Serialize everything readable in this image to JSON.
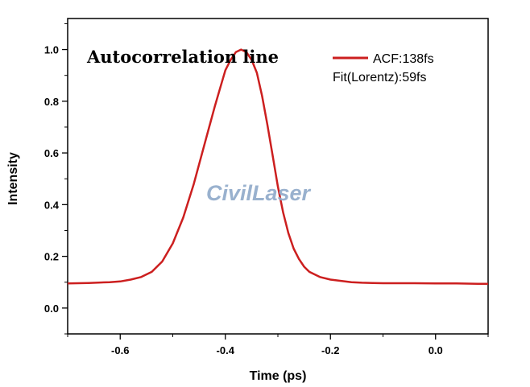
{
  "chart_data": {
    "type": "line",
    "title": "Autocorrelation line",
    "xlabel": "Time (ps)",
    "ylabel": "Intensity",
    "xlim": [
      -0.7,
      0.1
    ],
    "ylim": [
      -0.1,
      1.12
    ],
    "x_ticks": [
      -0.6,
      -0.4,
      -0.2,
      0.0
    ],
    "x_tick_labels": [
      "-0.6",
      "-0.4",
      "-0.2",
      "0.0"
    ],
    "y_ticks": [
      0.0,
      0.2,
      0.4,
      0.6,
      0.8,
      1.0
    ],
    "y_tick_labels": [
      "0.0",
      "0.2",
      "0.4",
      "0.6",
      "0.8",
      "1.0"
    ],
    "grid": false,
    "legend_position": "top-right",
    "legend_lines": [
      "ACF:138fs",
      "Fit(Lorentz):59fs"
    ],
    "series": [
      {
        "name": "ACF:138fs",
        "color": "#cc1f1f",
        "x": [
          -0.7,
          -0.66,
          -0.62,
          -0.6,
          -0.58,
          -0.56,
          -0.54,
          -0.52,
          -0.5,
          -0.48,
          -0.46,
          -0.44,
          -0.42,
          -0.41,
          -0.4,
          -0.39,
          -0.38,
          -0.37,
          -0.36,
          -0.35,
          -0.34,
          -0.33,
          -0.32,
          -0.31,
          -0.3,
          -0.29,
          -0.28,
          -0.27,
          -0.26,
          -0.25,
          -0.24,
          -0.22,
          -0.2,
          -0.18,
          -0.16,
          -0.14,
          -0.12,
          -0.1,
          -0.08,
          -0.04,
          0.0,
          0.04,
          0.08,
          0.1
        ],
        "y": [
          0.095,
          0.097,
          0.1,
          0.103,
          0.11,
          0.12,
          0.14,
          0.18,
          0.25,
          0.35,
          0.48,
          0.63,
          0.78,
          0.85,
          0.92,
          0.96,
          0.99,
          1.0,
          0.99,
          0.96,
          0.91,
          0.82,
          0.71,
          0.59,
          0.47,
          0.37,
          0.29,
          0.23,
          0.19,
          0.16,
          0.14,
          0.12,
          0.11,
          0.105,
          0.1,
          0.098,
          0.097,
          0.096,
          0.096,
          0.096,
          0.095,
          0.095,
          0.094,
          0.094
        ]
      }
    ]
  },
  "watermark": "CivilLaser"
}
